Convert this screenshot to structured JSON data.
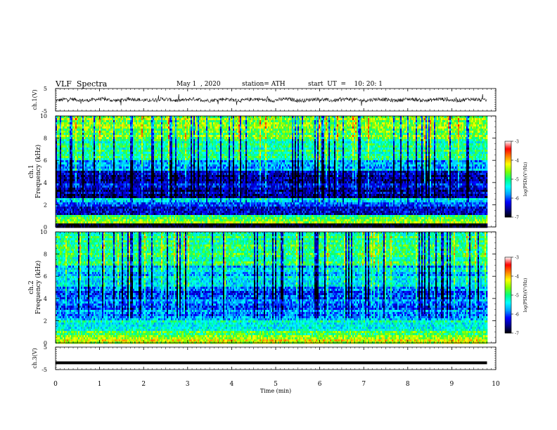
{
  "header": {
    "title": "VLF  Spectra",
    "date": "May 1  , 2020",
    "station": "station= ATH",
    "start": "start  UT  =    10: 20: 1"
  },
  "colors": {
    "background": "#ffffff",
    "frame": "#000000",
    "colormap": [
      "#000000",
      "#00008b",
      "#0000ff",
      "#00a0ff",
      "#00ffff",
      "#00ff80",
      "#80ff00",
      "#ffff00",
      "#ff8000",
      "#ff0000",
      "#ffffff"
    ]
  },
  "chart_data": [
    {
      "type": "line",
      "panel": "ch1-waveform",
      "ylabel": "ch.1(V)",
      "yticks": [
        "5",
        "-5"
      ],
      "ylim": [
        -5,
        5
      ],
      "xlim": [
        0,
        10
      ],
      "data_end_min": 9.8,
      "series": [
        {
          "values_description_mean": 0,
          "approx_range": [
            -1.8,
            1.5
          ]
        }
      ]
    },
    {
      "type": "heatmap",
      "panel": "ch1-spectrogram",
      "ylabel_top": "ch.1",
      "ylabel": "Frequency  (kHz)",
      "yticks": [
        "10",
        "8",
        "6",
        "4",
        "2",
        "0"
      ],
      "ylim": [
        0,
        10
      ],
      "xlim": [
        0,
        10
      ],
      "data_end_min": 9.8,
      "colorbar": {
        "label": "log(PSD)(V²/Hz)",
        "ticks": [
          "-3",
          "-4",
          "-5",
          "-6",
          "-7"
        ],
        "range": [
          -7,
          -3
        ]
      },
      "bands_log_psd": [
        {
          "f": [
            0,
            0.3
          ],
          "v": -7.0
        },
        {
          "f": [
            0.3,
            0.7
          ],
          "v": -4.6
        },
        {
          "f": [
            0.7,
            1.0
          ],
          "v": -5.0
        },
        {
          "f": [
            1.0,
            2.2
          ],
          "v": -6.2
        },
        {
          "f": [
            2.2,
            2.6
          ],
          "v": -5.4
        },
        {
          "f": [
            2.6,
            5.0
          ],
          "v": -6.4
        },
        {
          "f": [
            5.0,
            6.0
          ],
          "v": -5.7
        },
        {
          "f": [
            6.0,
            8.0
          ],
          "v": -5.1
        },
        {
          "f": [
            8.0,
            10.0
          ],
          "v": -4.7
        }
      ]
    },
    {
      "type": "heatmap",
      "panel": "ch2-spectrogram",
      "ylabel_top": "ch.2",
      "ylabel": "Frequency  (kHz)",
      "yticks": [
        "10",
        "8",
        "6",
        "4",
        "2",
        "0"
      ],
      "ylim": [
        0,
        10
      ],
      "xlim": [
        0,
        10
      ],
      "data_end_min": 9.8,
      "colorbar": {
        "label": "log(PSD)(V²/Hz)",
        "ticks": [
          "-3",
          "-4",
          "-5",
          "-6",
          "-7"
        ],
        "range": [
          -7,
          -3
        ]
      },
      "bands_log_psd": [
        {
          "f": [
            0,
            0.4
          ],
          "v": -4.3
        },
        {
          "f": [
            0.4,
            1.0
          ],
          "v": -4.7
        },
        {
          "f": [
            1.0,
            2.0
          ],
          "v": -5.2
        },
        {
          "f": [
            2.0,
            3.0
          ],
          "v": -5.8
        },
        {
          "f": [
            3.0,
            5.0
          ],
          "v": -5.9
        },
        {
          "f": [
            5.0,
            7.0
          ],
          "v": -5.5
        },
        {
          "f": [
            7.0,
            10.0
          ],
          "v": -5.0
        }
      ]
    },
    {
      "type": "line",
      "panel": "ch3-waveform",
      "ylabel": "ch.3(V)",
      "yticks": [
        "5",
        "-5"
      ],
      "ylim": [
        -5,
        5
      ],
      "xlim": [
        0,
        10
      ],
      "data_end_min": 9.8,
      "series": [
        {
          "constant_value": -2
        }
      ]
    }
  ],
  "xaxis": {
    "label": "Time  (min)",
    "ticks": [
      "0",
      "1",
      "2",
      "3",
      "4",
      "5",
      "6",
      "7",
      "8",
      "9",
      "10"
    ]
  }
}
